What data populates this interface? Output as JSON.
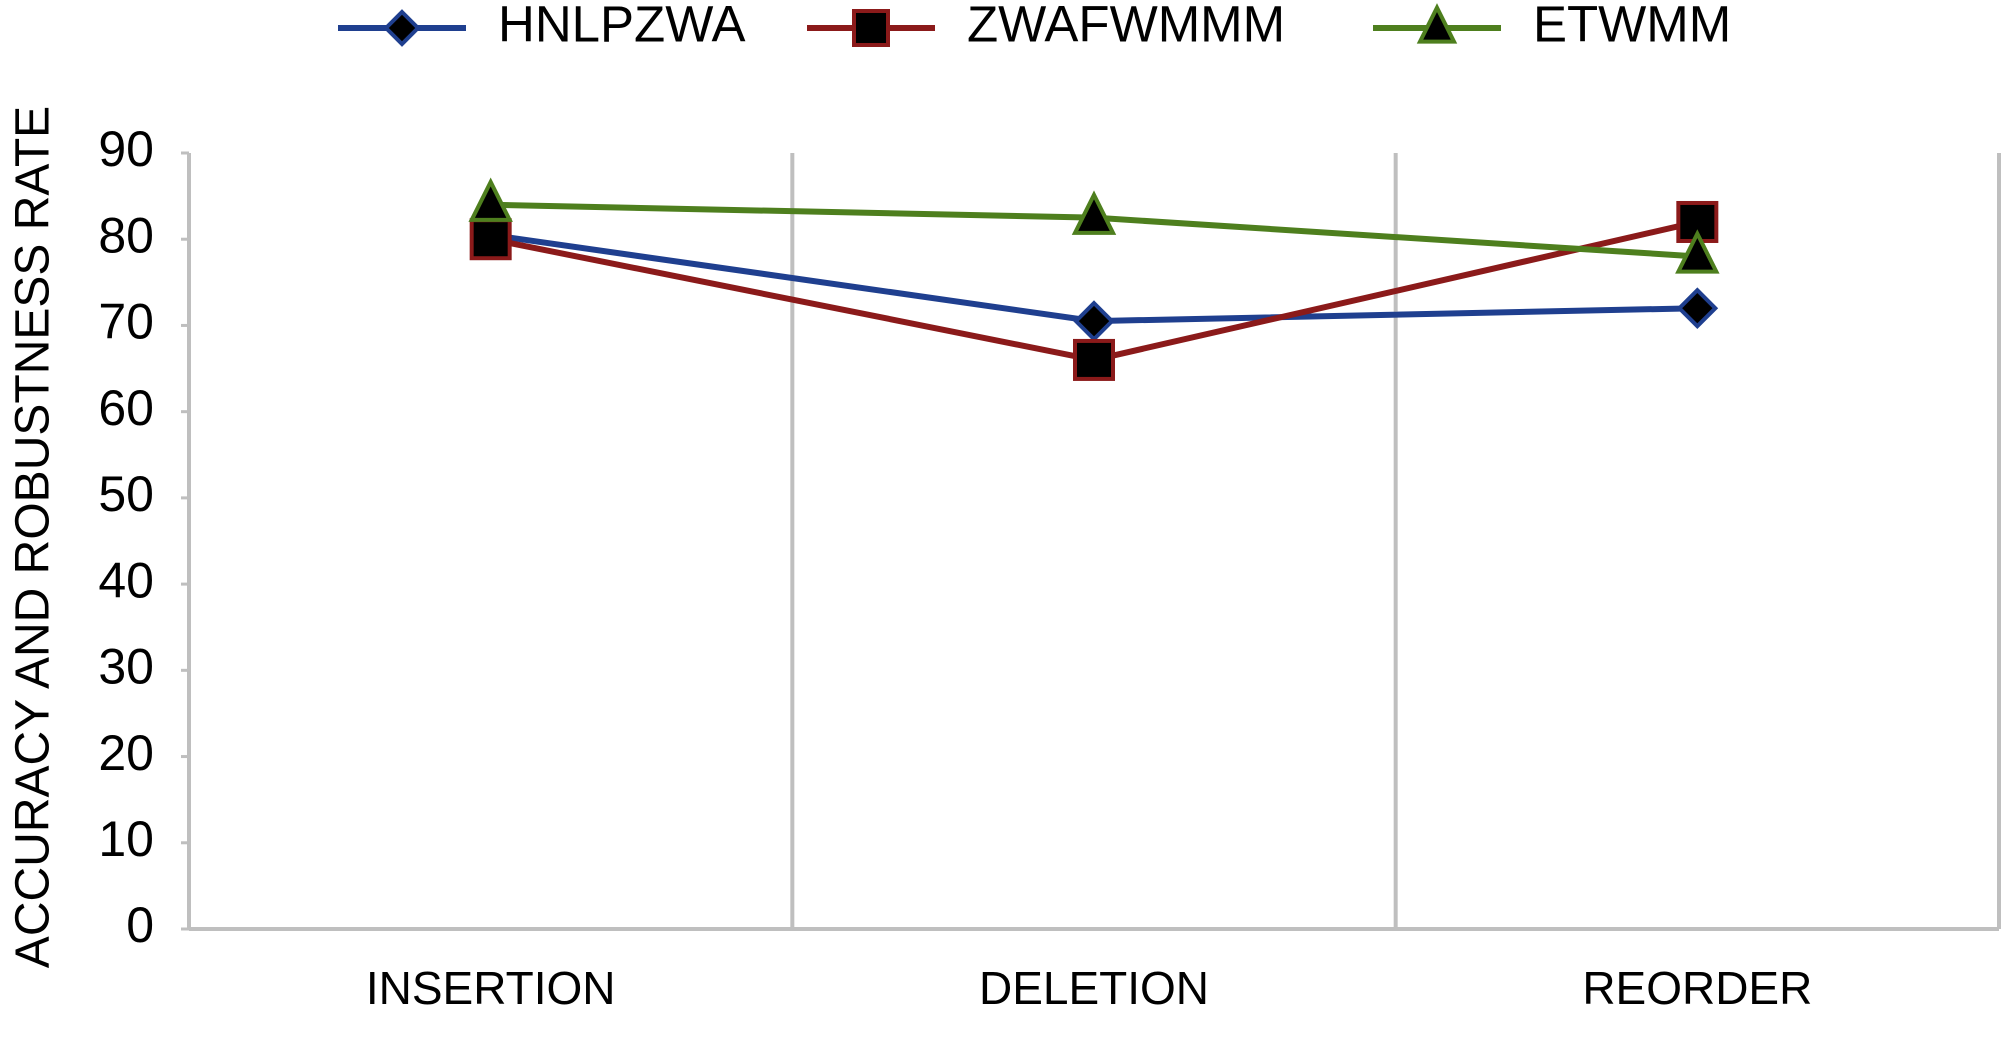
{
  "chart_data": {
    "type": "line",
    "y_label": "ACCURACY AND ROBUSTNESS RATE",
    "categories": [
      "INSERTION",
      "DELETION",
      "REORDER"
    ],
    "series": [
      {
        "name": "HNLPZWA",
        "color": "#1f3f8f",
        "marker": "diamond",
        "values": [
          80.5,
          70.5,
          72
        ]
      },
      {
        "name": "ZWAFWMMM",
        "color": "#8b1a1a",
        "marker": "square",
        "values": [
          80,
          66,
          82
        ]
      },
      {
        "name": "ETWMM",
        "color": "#4e7f1e",
        "marker": "triangle",
        "values": [
          84,
          82.5,
          78
        ]
      }
    ],
    "ylim": [
      0,
      90
    ],
    "yticks": [
      0,
      10,
      20,
      30,
      40,
      50,
      60,
      70,
      80,
      90
    ],
    "legend": "top"
  }
}
